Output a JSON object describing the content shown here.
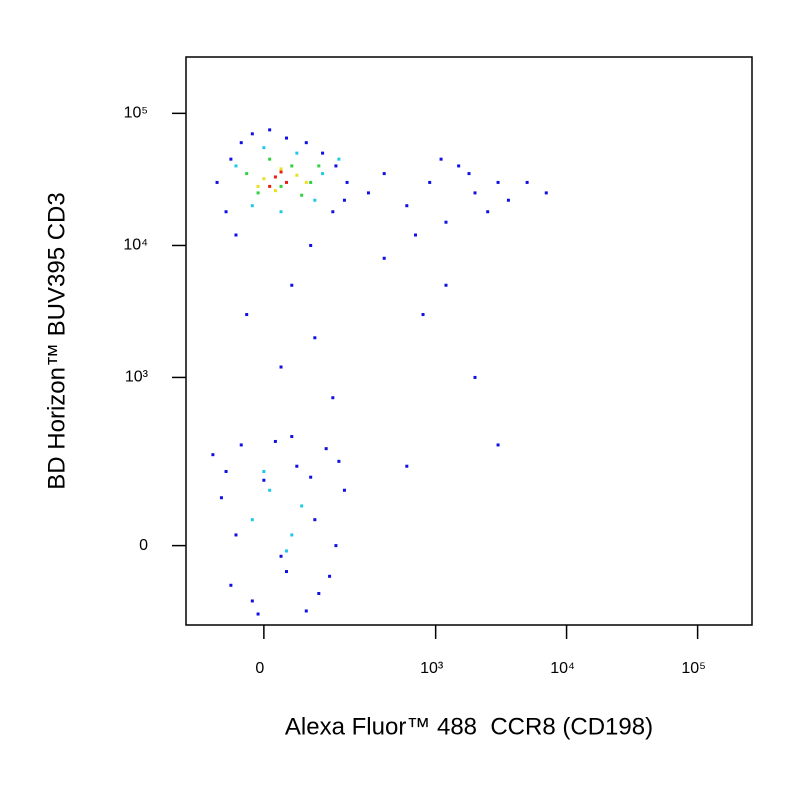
{
  "chart_data": {
    "type": "scatter",
    "x_label": "Alexa Fluor™ 488  CCR8 (CD198)",
    "y_label": "BD Horizon™ BUV395 CD3",
    "scale": "biexponential",
    "xlim": [
      -180,
      260000
    ],
    "ylim": [
      -200,
      267000
    ],
    "xticks": [
      0,
      {
        "value": 1000,
        "label": "10³"
      },
      {
        "value": 10000,
        "label": "10⁴"
      },
      {
        "value": 100000,
        "label": "10⁵"
      }
    ],
    "yticks": [
      0,
      {
        "value": 1000,
        "label": "10³"
      },
      {
        "value": 10000,
        "label": "10⁴"
      },
      {
        "value": 100000,
        "label": "10⁵"
      }
    ],
    "series": [
      {
        "color": "#1010e0",
        "x": [
          -90,
          -60,
          -40,
          -20,
          10,
          40,
          80,
          120,
          160,
          200,
          -70,
          150,
          -50,
          90,
          190,
          300,
          400,
          600,
          900,
          1200,
          1500,
          2000,
          2500,
          3000,
          3600,
          700,
          1100,
          1800,
          5000,
          7000,
          50,
          -30,
          100,
          400,
          800,
          1200,
          2000,
          30,
          150,
          3000,
          600,
          -100,
          -80,
          -60,
          -40,
          -20,
          0,
          20,
          40,
          60,
          80,
          100,
          130,
          160,
          190,
          -70,
          -10,
          50,
          110,
          170,
          -50,
          30,
          90,
          140
        ],
        "y": [
          30000,
          45000,
          60000,
          70000,
          75000,
          65000,
          60000,
          50000,
          40000,
          30000,
          18000,
          18000,
          12000,
          10000,
          22000,
          25000,
          35000,
          20000,
          30000,
          15000,
          40000,
          25000,
          18000,
          30000,
          22000,
          12000,
          45000,
          35000,
          30000,
          25000,
          5000,
          3000,
          2000,
          8000,
          3000,
          5000,
          1000,
          1200,
          700,
          300,
          200,
          250,
          100,
          -80,
          300,
          -120,
          150,
          320,
          -50,
          200,
          -150,
          50,
          280,
          0,
          120,
          180,
          -160,
          350,
          -100,
          220,
          20,
          -20,
          160,
          -60
        ]
      },
      {
        "color": "#20c8e8",
        "x": [
          -50,
          0,
          60,
          120,
          -20,
          100,
          30,
          170,
          -20,
          10,
          40,
          70,
          0,
          50
        ],
        "y": [
          40000,
          55000,
          50000,
          35000,
          20000,
          22000,
          18000,
          45000,
          50,
          120,
          -10,
          80,
          180,
          20
        ]
      },
      {
        "color": "#30d040",
        "x": [
          -30,
          10,
          50,
          90,
          -10,
          70,
          30,
          110
        ],
        "y": [
          35000,
          45000,
          40000,
          30000,
          25000,
          24000,
          28000,
          40000
        ]
      },
      {
        "color": "#e8e020",
        "x": [
          0,
          30,
          60,
          -10,
          80,
          20
        ],
        "y": [
          32000,
          38000,
          34000,
          28000,
          30000,
          26000
        ]
      },
      {
        "color": "#e82010",
        "x": [
          20,
          40,
          10,
          30
        ],
        "y": [
          33000,
          30000,
          28000,
          36000
        ]
      }
    ]
  }
}
